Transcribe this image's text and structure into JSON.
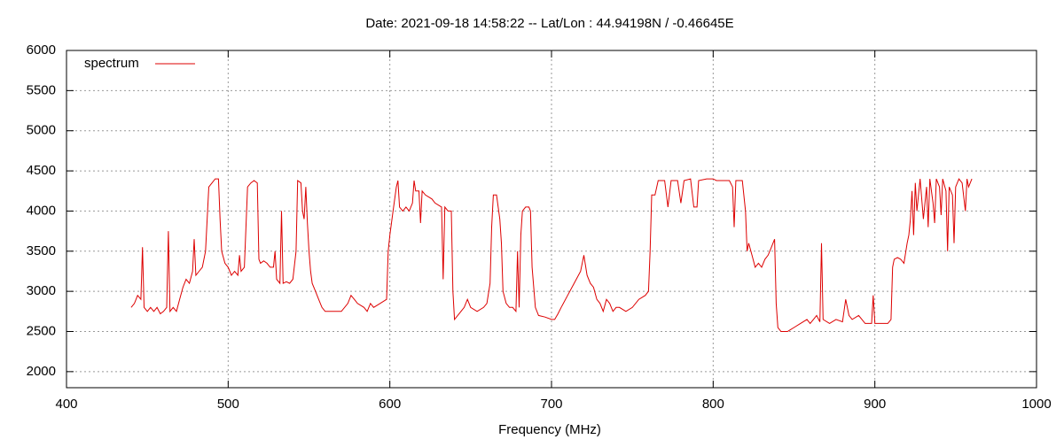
{
  "chart_data": {
    "type": "line",
    "title": "Date: 2021-09-18 14:58:22  --  Lat/Lon : 44.94198N / -0.46645E",
    "xlabel": "Frequency (MHz)",
    "x": [
      440,
      442,
      444,
      446,
      447,
      448,
      450,
      452,
      454,
      456,
      458,
      460,
      462,
      463,
      464,
      466,
      468,
      470,
      472,
      474,
      476,
      478,
      479,
      480,
      482,
      484,
      486,
      488,
      490,
      492,
      494,
      495,
      496,
      498,
      500,
      502,
      504,
      506,
      507,
      508,
      510,
      512,
      514,
      516,
      518,
      519,
      520,
      522,
      524,
      526,
      528,
      529,
      530,
      532,
      533,
      534,
      536,
      538,
      540,
      542,
      543,
      545,
      546,
      547,
      548,
      549,
      550,
      551,
      552,
      554,
      556,
      558,
      560,
      565,
      570,
      574,
      576,
      578,
      580,
      584,
      586,
      588,
      590,
      594,
      598,
      599,
      600,
      602,
      604,
      605,
      606,
      608,
      610,
      612,
      614,
      615,
      616,
      618,
      619,
      620,
      622,
      626,
      628,
      632,
      633,
      634,
      636,
      638,
      639,
      640,
      642,
      644,
      646,
      648,
      650,
      654,
      658,
      660,
      662,
      663,
      664,
      666,
      668,
      669,
      670,
      672,
      674,
      676,
      678,
      679,
      680,
      681,
      682,
      684,
      686,
      687,
      688,
      690,
      692,
      696,
      700,
      702,
      704,
      706,
      710,
      714,
      718,
      720,
      722,
      724,
      726,
      728,
      730,
      732,
      734,
      736,
      738,
      740,
      742,
      746,
      750,
      754,
      758,
      760,
      761,
      762,
      764,
      766,
      770,
      772,
      774,
      778,
      780,
      782,
      786,
      788,
      790,
      791,
      796,
      800,
      802,
      810,
      812,
      813,
      814,
      818,
      820,
      821,
      822,
      824,
      826,
      828,
      830,
      832,
      834,
      836,
      838,
      839,
      840,
      842,
      846,
      850,
      854,
      858,
      860,
      862,
      864,
      866,
      867,
      868,
      872,
      876,
      880,
      882,
      884,
      886,
      890,
      892,
      894,
      898,
      899,
      900,
      904,
      908,
      910,
      911,
      912,
      914,
      916,
      918,
      920,
      921,
      922,
      923,
      924,
      925,
      926,
      928,
      930,
      932,
      933,
      934,
      936,
      937,
      938,
      940,
      941,
      942,
      944,
      945,
      946,
      948,
      949,
      950,
      952,
      954,
      956,
      957,
      958,
      960
    ],
    "series": [
      {
        "name": "spectrum",
        "color": "#dd0000",
        "values": [
          2800,
          2850,
          2950,
          2900,
          3550,
          2800,
          2750,
          2800,
          2750,
          2800,
          2720,
          2750,
          2800,
          3750,
          2750,
          2800,
          2750,
          2900,
          3050,
          3150,
          3100,
          3250,
          3650,
          3200,
          3250,
          3300,
          3500,
          4300,
          4350,
          4400,
          4400,
          3900,
          3500,
          3350,
          3300,
          3200,
          3250,
          3200,
          3450,
          3250,
          3300,
          4300,
          4350,
          4380,
          4350,
          3400,
          3350,
          3380,
          3350,
          3300,
          3300,
          3500,
          3150,
          3100,
          4000,
          3100,
          3120,
          3100,
          3150,
          3500,
          4380,
          4350,
          4000,
          3900,
          4300,
          3850,
          3500,
          3250,
          3100,
          3000,
          2900,
          2800,
          2750,
          2750,
          2750,
          2850,
          2950,
          2900,
          2850,
          2800,
          2750,
          2850,
          2800,
          2850,
          2900,
          3500,
          3700,
          4000,
          4300,
          4380,
          4050,
          4000,
          4050,
          4000,
          4100,
          4380,
          4250,
          4250,
          3850,
          4250,
          4200,
          4150,
          4100,
          4050,
          3150,
          4050,
          4000,
          4000,
          3000,
          2650,
          2700,
          2750,
          2800,
          2900,
          2800,
          2750,
          2800,
          2850,
          3100,
          3800,
          4200,
          4200,
          3900,
          3600,
          3000,
          2850,
          2800,
          2800,
          2750,
          3500,
          2800,
          3700,
          4000,
          4050,
          4050,
          4000,
          3300,
          2800,
          2700,
          2680,
          2650,
          2650,
          2720,
          2800,
          2950,
          3100,
          3250,
          3450,
          3200,
          3100,
          3050,
          2900,
          2850,
          2750,
          2900,
          2850,
          2750,
          2800,
          2800,
          2750,
          2800,
          2900,
          2950,
          3000,
          3500,
          4200,
          4200,
          4380,
          4380,
          4050,
          4380,
          4380,
          4100,
          4380,
          4400,
          4050,
          4050,
          4380,
          4400,
          4400,
          4380,
          4380,
          4300,
          3800,
          4380,
          4380,
          4000,
          3500,
          3600,
          3450,
          3300,
          3350,
          3300,
          3400,
          3450,
          3550,
          3650,
          2850,
          2550,
          2500,
          2500,
          2550,
          2600,
          2650,
          2600,
          2650,
          2700,
          2620,
          3600,
          2650,
          2600,
          2650,
          2620,
          2900,
          2700,
          2650,
          2700,
          2650,
          2600,
          2600,
          2950,
          2600,
          2600,
          2600,
          2650,
          3300,
          3400,
          3420,
          3400,
          3350,
          3600,
          3700,
          3900,
          4250,
          3700,
          4350,
          4000,
          4400,
          3900,
          4300,
          3800,
          4400,
          4100,
          3850,
          4400,
          4300,
          3950,
          4400,
          4250,
          3500,
          4300,
          4200,
          3600,
          4300,
          4400,
          4350,
          4000,
          4400,
          4300,
          4400
        ]
      }
    ],
    "xlim": [
      400,
      1000
    ],
    "xticks": [
      400,
      500,
      600,
      700,
      800,
      900,
      1000
    ],
    "ylim": [
      1800,
      6000
    ],
    "yticks": [
      2000,
      2500,
      3000,
      3500,
      4000,
      4500,
      5000,
      5500,
      6000
    ],
    "grid": true,
    "legend": "top-left"
  }
}
